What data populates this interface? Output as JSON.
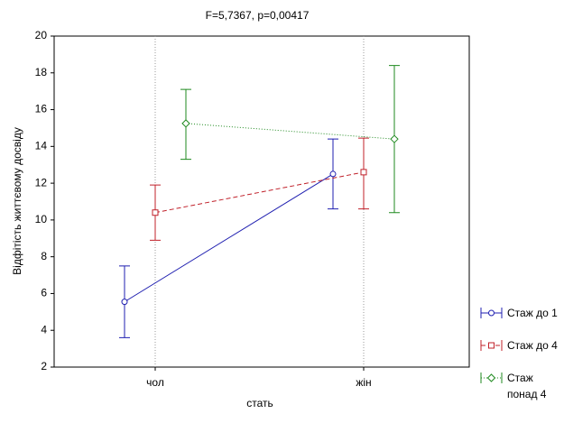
{
  "chart_data": {
    "type": "errorline",
    "title": "F=5,7367, p=0,00417",
    "x_label": "стать",
    "y_label": "Відфітість життєвому досвіду",
    "categories": [
      "чол",
      "жін"
    ],
    "ylim": [
      2,
      20
    ],
    "yticks": [
      2,
      4,
      6,
      8,
      10,
      12,
      14,
      16,
      18,
      20
    ],
    "grid": true,
    "series": [
      {
        "name": "Стаж до 1",
        "color": "#1f1fb0",
        "line_style": "solid",
        "marker": "circle",
        "values": [
          5.55,
          12.5
        ],
        "lower": [
          3.6,
          10.6
        ],
        "upper": [
          7.5,
          14.4
        ]
      },
      {
        "name": "Стаж до 4",
        "color": "#c0202a",
        "line_style": "dashed",
        "marker": "square",
        "values": [
          10.4,
          12.6
        ],
        "lower": [
          8.9,
          10.6
        ],
        "upper": [
          11.9,
          14.45
        ]
      },
      {
        "name": "Стаж понад 4",
        "color": "#1f8a1f",
        "line_style": "dotted",
        "marker": "diamond",
        "values": [
          15.25,
          14.4
        ],
        "lower": [
          13.3,
          10.4
        ],
        "upper": [
          17.1,
          18.4
        ]
      }
    ]
  }
}
